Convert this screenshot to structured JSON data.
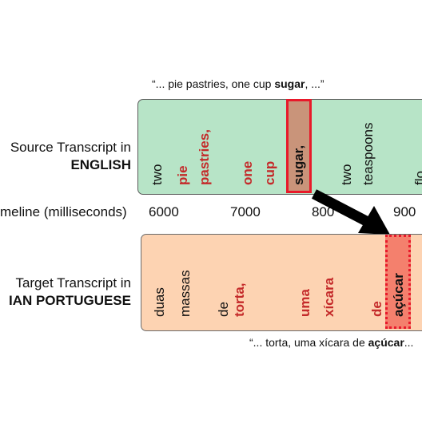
{
  "source_quote": {
    "pre": "“... pie pastries, one cup ",
    "bold": "sugar",
    "post": ", ...”"
  },
  "target_quote": {
    "pre": "“... torta, uma xícara de ",
    "bold": "açúcar",
    "post": "..."
  },
  "source_label": {
    "line1": "Source Transcript in",
    "line2": "ENGLISH"
  },
  "timeline_label": "meline (milliseconds)",
  "target_label": {
    "line1": "Target Transcript in",
    "line2": "IAN PORTUGUESE"
  },
  "ticks": [
    "6000",
    "7000",
    "800",
    "900"
  ],
  "source_words": [
    {
      "text": "two",
      "style": "plain"
    },
    {
      "text": "pie",
      "style": "red"
    },
    {
      "text": "pastries,",
      "style": "red"
    },
    {
      "text": "one",
      "style": "red"
    },
    {
      "text": "cup",
      "style": "red"
    },
    {
      "text": "sugar,",
      "style": "highlight"
    },
    {
      "text": "two",
      "style": "plain"
    },
    {
      "text": "teaspoons",
      "style": "plain"
    },
    {
      "text": "flo",
      "style": "plain"
    }
  ],
  "target_words": [
    {
      "text": "duas",
      "style": "plain"
    },
    {
      "text": "massas",
      "style": "plain"
    },
    {
      "text": "de",
      "style": "plain"
    },
    {
      "text": "torta,",
      "style": "red"
    },
    {
      "text": "uma",
      "style": "red"
    },
    {
      "text": "xícara",
      "style": "red"
    },
    {
      "text": "de",
      "style": "red"
    },
    {
      "text": "açúcar",
      "style": "highlight"
    }
  ],
  "colors": {
    "source_bg": "#b7e4c7",
    "target_bg": "#fdd3b2",
    "highlight_border": "#e8192a",
    "red_text": "#c42a2a"
  }
}
